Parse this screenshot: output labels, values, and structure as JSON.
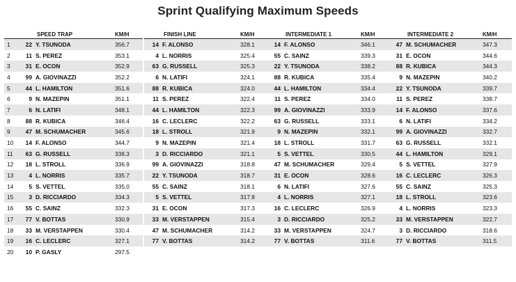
{
  "title": "Sprint Qualifying Maximum Speeds",
  "speed_trap": {
    "header": "SPEED TRAP",
    "unit": "KM/H",
    "rows": [
      {
        "pos": "1",
        "num": "22",
        "driver": "Y. TSUNODA",
        "speed": "356.7"
      },
      {
        "pos": "2",
        "num": "11",
        "driver": "S. PEREZ",
        "speed": "353.1"
      },
      {
        "pos": "3",
        "num": "31",
        "driver": "E. OCON",
        "speed": "352.9"
      },
      {
        "pos": "4",
        "num": "99",
        "driver": "A. GIOVINAZZI",
        "speed": "352.2"
      },
      {
        "pos": "5",
        "num": "44",
        "driver": "L. HAMILTON",
        "speed": "351.6"
      },
      {
        "pos": "6",
        "num": "9",
        "driver": "N. MAZEPIN",
        "speed": "351.1"
      },
      {
        "pos": "7",
        "num": "6",
        "driver": "N. LATIFI",
        "speed": "348.1"
      },
      {
        "pos": "8",
        "num": "88",
        "driver": "R. KUBICA",
        "speed": "346.4"
      },
      {
        "pos": "9",
        "num": "47",
        "driver": "M. SCHUMACHER",
        "speed": "345.6"
      },
      {
        "pos": "10",
        "num": "14",
        "driver": "F. ALONSO",
        "speed": "344.7"
      },
      {
        "pos": "11",
        "num": "63",
        "driver": "G. RUSSELL",
        "speed": "338.3"
      },
      {
        "pos": "12",
        "num": "18",
        "driver": "L. STROLL",
        "speed": "336.9"
      },
      {
        "pos": "13",
        "num": "4",
        "driver": "L. NORRIS",
        "speed": "335.7"
      },
      {
        "pos": "14",
        "num": "5",
        "driver": "S. VETTEL",
        "speed": "335.0"
      },
      {
        "pos": "15",
        "num": "3",
        "driver": "D. RICCIARDO",
        "speed": "334.3"
      },
      {
        "pos": "16",
        "num": "55",
        "driver": "C. SAINZ",
        "speed": "332.3"
      },
      {
        "pos": "17",
        "num": "77",
        "driver": "V. BOTTAS",
        "speed": "330.9"
      },
      {
        "pos": "18",
        "num": "33",
        "driver": "M. VERSTAPPEN",
        "speed": "330.4"
      },
      {
        "pos": "19",
        "num": "16",
        "driver": "C. LECLERC",
        "speed": "327.1"
      },
      {
        "pos": "20",
        "num": "10",
        "driver": "P. GASLY",
        "speed": "297.5"
      }
    ]
  },
  "finish_line": {
    "header": "FINISH LINE",
    "unit": "KM/H",
    "rows": [
      {
        "num": "14",
        "driver": "F. ALONSO",
        "speed": "328.1"
      },
      {
        "num": "4",
        "driver": "L. NORRIS",
        "speed": "325.4"
      },
      {
        "num": "63",
        "driver": "G. RUSSELL",
        "speed": "325.3"
      },
      {
        "num": "6",
        "driver": "N. LATIFI",
        "speed": "324.1"
      },
      {
        "num": "88",
        "driver": "R. KUBICA",
        "speed": "324.0"
      },
      {
        "num": "11",
        "driver": "S. PEREZ",
        "speed": "322.4"
      },
      {
        "num": "44",
        "driver": "L. HAMILTON",
        "speed": "322.3"
      },
      {
        "num": "16",
        "driver": "C. LECLERC",
        "speed": "322.2"
      },
      {
        "num": "18",
        "driver": "L. STROLL",
        "speed": "321.9"
      },
      {
        "num": "9",
        "driver": "N. MAZEPIN",
        "speed": "321.4"
      },
      {
        "num": "3",
        "driver": "D. RICCIARDO",
        "speed": "321.1"
      },
      {
        "num": "99",
        "driver": "A. GIOVINAZZI",
        "speed": "318.8"
      },
      {
        "num": "22",
        "driver": "Y. TSUNODA",
        "speed": "318.7"
      },
      {
        "num": "55",
        "driver": "C. SAINZ",
        "speed": "318.1"
      },
      {
        "num": "5",
        "driver": "S. VETTEL",
        "speed": "317.8"
      },
      {
        "num": "31",
        "driver": "E. OCON",
        "speed": "317.3"
      },
      {
        "num": "33",
        "driver": "M. VERSTAPPEN",
        "speed": "315.4"
      },
      {
        "num": "47",
        "driver": "M. SCHUMACHER",
        "speed": "314.2"
      },
      {
        "num": "77",
        "driver": "V. BOTTAS",
        "speed": "314.2"
      }
    ]
  },
  "intermediate_1": {
    "header": "INTERMEDIATE 1",
    "unit": "KM/H",
    "rows": [
      {
        "num": "14",
        "driver": "F. ALONSO",
        "speed": "346.1"
      },
      {
        "num": "55",
        "driver": "C. SAINZ",
        "speed": "339.3"
      },
      {
        "num": "22",
        "driver": "Y. TSUNODA",
        "speed": "338.2"
      },
      {
        "num": "88",
        "driver": "R. KUBICA",
        "speed": "335.4"
      },
      {
        "num": "44",
        "driver": "L. HAMILTON",
        "speed": "334.4"
      },
      {
        "num": "11",
        "driver": "S. PEREZ",
        "speed": "334.0"
      },
      {
        "num": "99",
        "driver": "A. GIOVINAZZI",
        "speed": "333.9"
      },
      {
        "num": "63",
        "driver": "G. RUSSELL",
        "speed": "333.1"
      },
      {
        "num": "9",
        "driver": "N. MAZEPIN",
        "speed": "332.1"
      },
      {
        "num": "18",
        "driver": "L. STROLL",
        "speed": "331.7"
      },
      {
        "num": "5",
        "driver": "S. VETTEL",
        "speed": "330.5"
      },
      {
        "num": "47",
        "driver": "M. SCHUMACHER",
        "speed": "329.4"
      },
      {
        "num": "31",
        "driver": "E. OCON",
        "speed": "328.6"
      },
      {
        "num": "6",
        "driver": "N. LATIFI",
        "speed": "327.6"
      },
      {
        "num": "4",
        "driver": "L. NORRIS",
        "speed": "327.1"
      },
      {
        "num": "16",
        "driver": "C. LECLERC",
        "speed": "326.9"
      },
      {
        "num": "3",
        "driver": "D. RICCIARDO",
        "speed": "325.2"
      },
      {
        "num": "33",
        "driver": "M. VERSTAPPEN",
        "speed": "324.7"
      },
      {
        "num": "77",
        "driver": "V. BOTTAS",
        "speed": "311.6"
      }
    ]
  },
  "intermediate_2": {
    "header": "INTERMEDIATE 2",
    "unit": "KM/H",
    "rows": [
      {
        "num": "47",
        "driver": "M. SCHUMACHER",
        "speed": "347.3"
      },
      {
        "num": "31",
        "driver": "E. OCON",
        "speed": "344.6"
      },
      {
        "num": "88",
        "driver": "R. KUBICA",
        "speed": "344.3"
      },
      {
        "num": "9",
        "driver": "N. MAZEPIN",
        "speed": "340.2"
      },
      {
        "num": "22",
        "driver": "Y. TSUNODA",
        "speed": "339.7"
      },
      {
        "num": "11",
        "driver": "S. PEREZ",
        "speed": "338.7"
      },
      {
        "num": "14",
        "driver": "F. ALONSO",
        "speed": "337.6"
      },
      {
        "num": "6",
        "driver": "N. LATIFI",
        "speed": "334.2"
      },
      {
        "num": "99",
        "driver": "A. GIOVINAZZI",
        "speed": "332.7"
      },
      {
        "num": "63",
        "driver": "G. RUSSELL",
        "speed": "332.1"
      },
      {
        "num": "44",
        "driver": "L. HAMILTON",
        "speed": "329.1"
      },
      {
        "num": "5",
        "driver": "S. VETTEL",
        "speed": "327.9"
      },
      {
        "num": "16",
        "driver": "C. LECLERC",
        "speed": "326.3"
      },
      {
        "num": "55",
        "driver": "C. SAINZ",
        "speed": "325.3"
      },
      {
        "num": "18",
        "driver": "L. STROLL",
        "speed": "323.6"
      },
      {
        "num": "4",
        "driver": "L. NORRIS",
        "speed": "323.3"
      },
      {
        "num": "33",
        "driver": "M. VERSTAPPEN",
        "speed": "322.7"
      },
      {
        "num": "3",
        "driver": "D. RICCIARDO",
        "speed": "318.6"
      },
      {
        "num": "77",
        "driver": "V. BOTTAS",
        "speed": "311.5"
      }
    ]
  },
  "colors": {
    "stripe": "#e6e6e6",
    "text": "#111111",
    "rule": "#222222"
  }
}
